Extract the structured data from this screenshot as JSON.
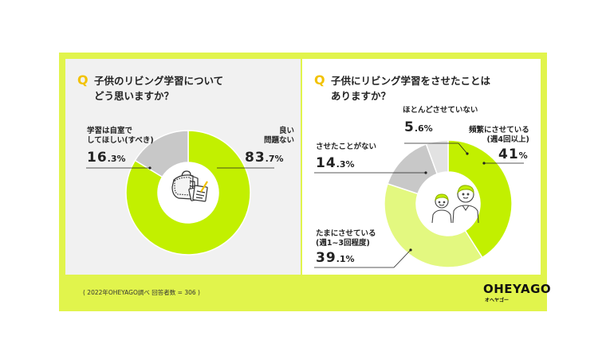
{
  "footer": {
    "source": "( 2022年OHEYAGO調べ 回答者数 = 306 )"
  },
  "logo": {
    "main": "OHEYAGO",
    "sub": "オヘヤゴー"
  },
  "colors": {
    "frame": "#e1f44c",
    "green": "#c2f000",
    "light_green": "#e3f880",
    "gray": "#c8c8c8",
    "light_gray": "#e2e2e2"
  },
  "chart_data": [
    {
      "type": "pie",
      "q_mark": "Q",
      "title_lines": [
        "子供のリビング学習について",
        "どう思いますか？"
      ],
      "icon": "randoseru-backpack-icon",
      "slices": [
        {
          "name_lines": [
            "良い",
            "問題ない"
          ],
          "value": 83.7,
          "int": "83",
          "dec": ".7%",
          "color": "#c2f000"
        },
        {
          "name_lines": [
            "学習は自室で",
            "してほしい(すべき)"
          ],
          "value": 16.3,
          "int": "16",
          "dec": ".3%",
          "color": "#c8c8c8"
        }
      ]
    },
    {
      "type": "pie",
      "q_mark": "Q",
      "title_lines": [
        "子供にリビング学習をさせたことは",
        "ありますか？"
      ],
      "icon": "children-icon",
      "slices": [
        {
          "name_lines": [
            "頻繁にさせている",
            "(週4回以上)"
          ],
          "value": 41,
          "int": "41",
          "dec": "%",
          "color": "#c2f000"
        },
        {
          "name_lines": [
            "たまにさせている",
            "(週1~3回程度)"
          ],
          "value": 39.1,
          "int": "39",
          "dec": ".1%",
          "color": "#e3f880"
        },
        {
          "name_lines": [
            "させたことがない"
          ],
          "value": 14.3,
          "int": "14",
          "dec": ".3%",
          "color": "#c8c8c8"
        },
        {
          "name_lines": [
            "ほとんどさせていない"
          ],
          "value": 5.6,
          "int": "5",
          "dec": ".6%",
          "color": "#e2e2e2"
        }
      ]
    }
  ]
}
